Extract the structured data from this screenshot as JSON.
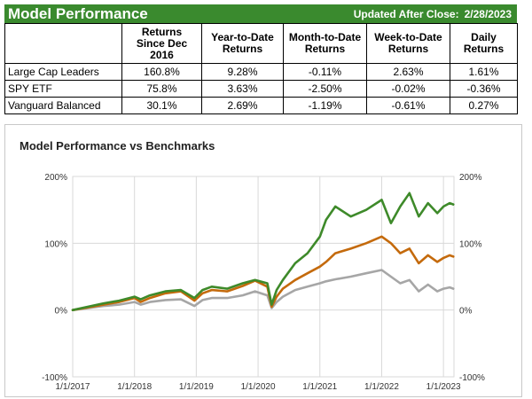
{
  "header": {
    "title": "Model Performance",
    "updated_label": "Updated After Close:",
    "updated_date": "2/28/2023"
  },
  "table": {
    "columns": [
      "",
      "Returns\nSince Dec\n2016",
      "Year-to-Date\nReturns",
      "Month-to-Date\nReturns",
      "Week-to-Date\nReturns",
      "Daily\nReturns"
    ],
    "rows": [
      {
        "model": "Large Cap Leaders",
        "since": "160.8%",
        "ytd": "9.28%",
        "mtd": "-0.11%",
        "wtd": "2.63%",
        "daily": "1.61%"
      },
      {
        "model": "SPY ETF",
        "since": "75.8%",
        "ytd": "3.63%",
        "mtd": "-2.50%",
        "wtd": "-0.02%",
        "daily": "-0.36%"
      },
      {
        "model": "Vanguard Balanced",
        "since": "30.1%",
        "ytd": "2.69%",
        "mtd": "-1.19%",
        "wtd": "-0.61%",
        "daily": "0.27%"
      }
    ],
    "header_color": "#3a8a2e"
  },
  "chart_data": {
    "type": "line",
    "title": "Model Performance vs Benchmarks",
    "xlabel": "",
    "ylabel": "",
    "xlim": [
      2017,
      2023.17
    ],
    "ylim": [
      -100,
      200
    ],
    "x_ticks": [
      "1/1/2017",
      "1/1/2018",
      "1/1/2019",
      "1/1/2020",
      "1/1/2021",
      "1/1/2022",
      "1/1/2023"
    ],
    "y_ticks_left": [
      "200%",
      "100%",
      "0%",
      "-100%"
    ],
    "y_ticks_right": [
      "200%",
      "100%",
      "0%",
      "-100%"
    ],
    "y_tick_values": [
      200,
      100,
      0,
      -100
    ],
    "grid": true,
    "legend": "none",
    "x": [
      2017.0,
      2017.25,
      2017.5,
      2017.75,
      2018.0,
      2018.1,
      2018.25,
      2018.5,
      2018.75,
      2018.97,
      2019.1,
      2019.25,
      2019.5,
      2019.75,
      2019.95,
      2020.15,
      2020.22,
      2020.3,
      2020.4,
      2020.6,
      2020.8,
      2021.0,
      2021.1,
      2021.25,
      2021.5,
      2021.75,
      2022.0,
      2022.15,
      2022.3,
      2022.45,
      2022.6,
      2022.75,
      2022.9,
      2023.0,
      2023.1,
      2023.16
    ],
    "series": [
      {
        "color": "#3e8a2a",
        "values": [
          0,
          5,
          10,
          14,
          20,
          16,
          22,
          28,
          30,
          18,
          30,
          35,
          32,
          40,
          45,
          40,
          8,
          30,
          45,
          70,
          85,
          110,
          135,
          155,
          140,
          150,
          165,
          130,
          155,
          175,
          140,
          160,
          145,
          155,
          160,
          158
        ]
      },
      {
        "color": "#c46a0c",
        "values": [
          0,
          4,
          8,
          12,
          18,
          12,
          18,
          25,
          28,
          14,
          25,
          30,
          28,
          36,
          44,
          35,
          5,
          20,
          32,
          45,
          55,
          65,
          72,
          85,
          92,
          100,
          110,
          100,
          85,
          92,
          70,
          82,
          72,
          78,
          82,
          80
        ]
      },
      {
        "color": "#a6a6a6",
        "values": [
          0,
          3,
          6,
          8,
          12,
          8,
          12,
          15,
          16,
          6,
          15,
          18,
          18,
          22,
          28,
          22,
          3,
          12,
          20,
          30,
          35,
          40,
          43,
          46,
          50,
          55,
          60,
          50,
          40,
          45,
          28,
          38,
          28,
          32,
          34,
          32
        ]
      }
    ]
  }
}
